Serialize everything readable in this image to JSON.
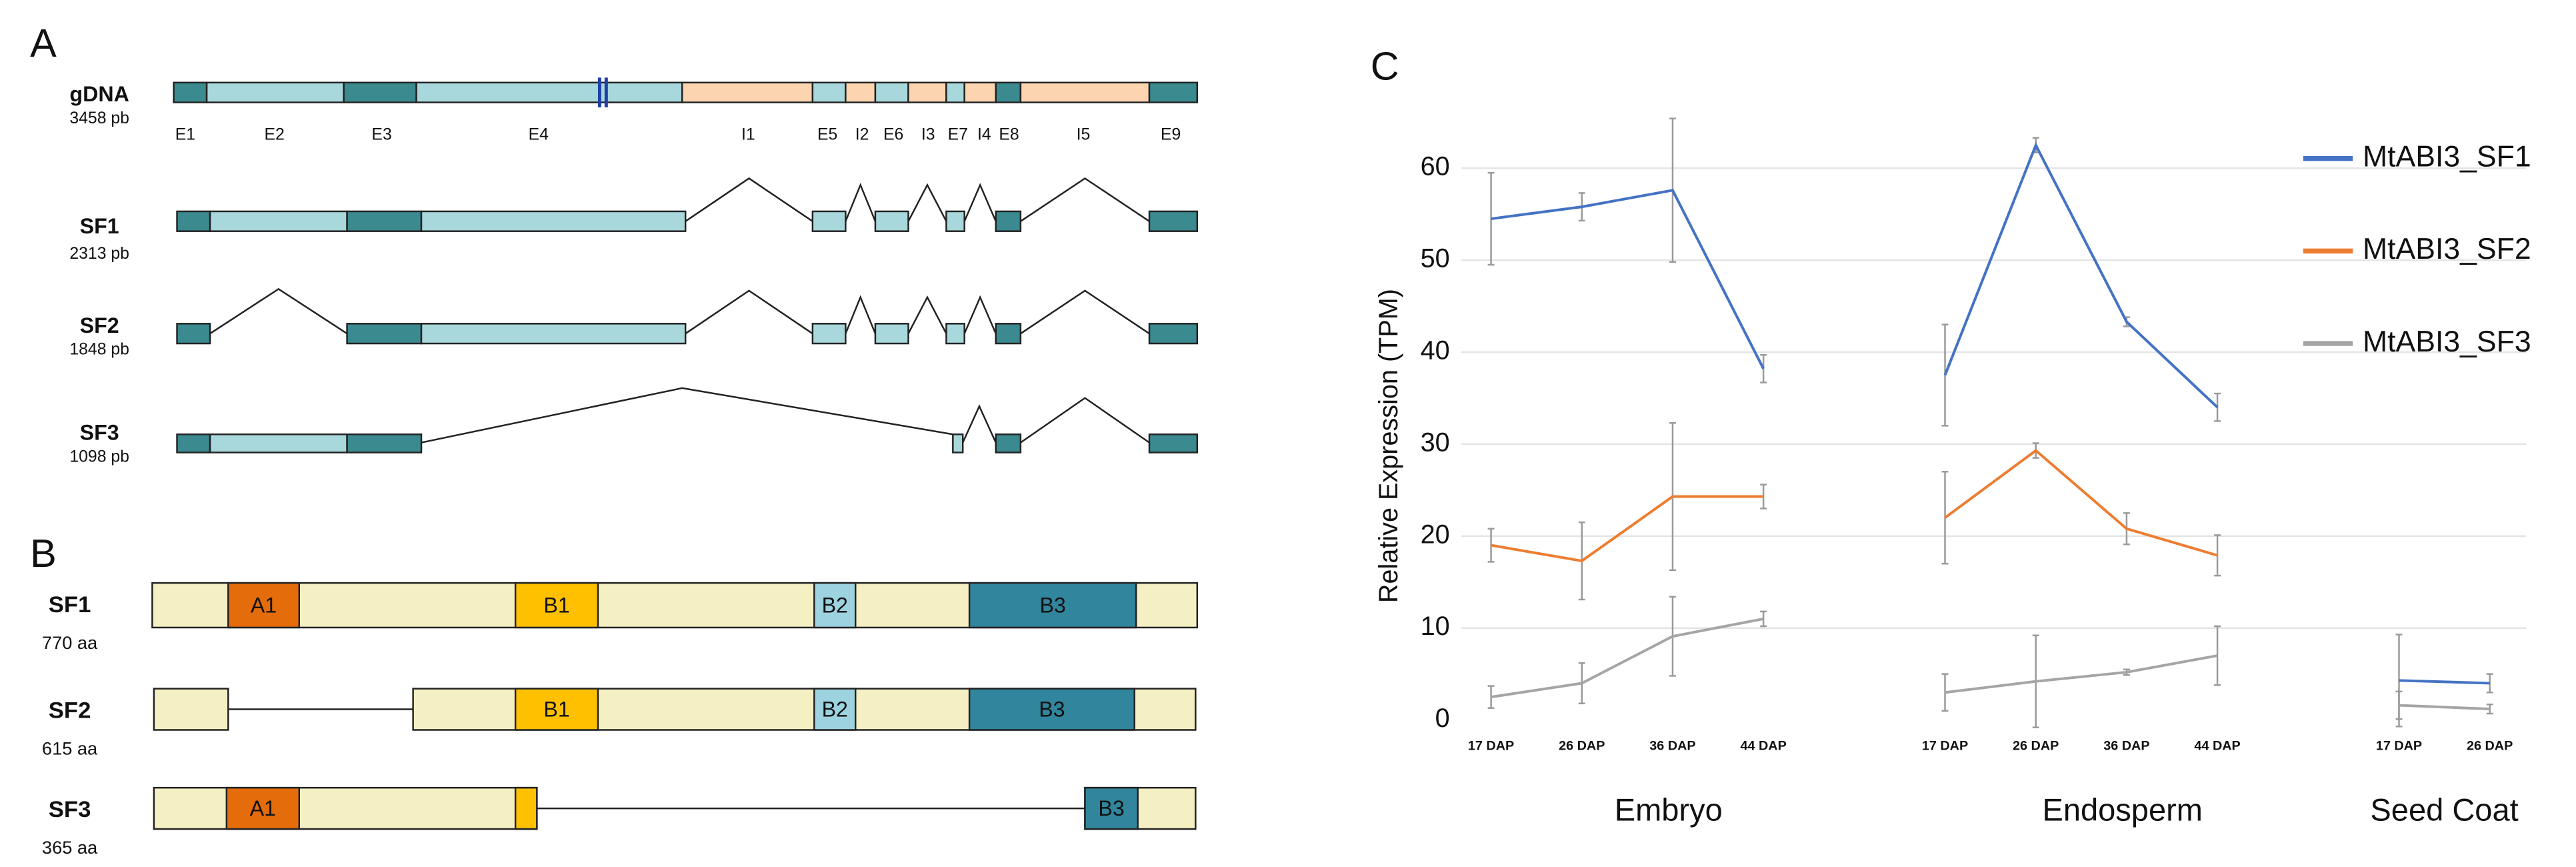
{
  "panel_a": {
    "label": "A",
    "tracks": [
      {
        "name": "gDNA",
        "size": "3458 pb"
      },
      {
        "name": "SF1",
        "size": "2313 pb"
      },
      {
        "name": "SF2",
        "size": "1848 pb"
      },
      {
        "name": "SF3",
        "size": "1098 pb"
      }
    ],
    "segments": [
      "E1",
      "E2",
      "E3",
      "E4",
      "I1",
      "E5",
      "I2",
      "E6",
      "I3",
      "E7",
      "I4",
      "E8",
      "I5",
      "E9"
    ]
  },
  "panel_b": {
    "label": "B",
    "tracks": [
      {
        "name": "SF1",
        "size": "770 aa",
        "domains": [
          "A1",
          "B1",
          "B2",
          "B3"
        ]
      },
      {
        "name": "SF2",
        "size": "615 aa",
        "domains": [
          "B1",
          "B2",
          "B3"
        ]
      },
      {
        "name": "SF3",
        "size": "365 aa",
        "domains": [
          "A1",
          "B3"
        ]
      }
    ]
  },
  "panel_c_label": "C",
  "chart_data": {
    "type": "line",
    "y_label": "Relative Expression (TPM)",
    "categories": [
      "17 DAP",
      "26 DAP",
      "36 DAP",
      "44 DAP",
      null,
      "17 DAP",
      "26 DAP",
      "36 DAP",
      "44 DAP",
      null,
      "17 DAP",
      "26 DAP"
    ],
    "groups": [
      "Embryo",
      "Endosperm",
      "Seed Coat"
    ],
    "ylim": [
      0,
      65
    ],
    "yticks": [
      0,
      10,
      20,
      30,
      40,
      50,
      60
    ],
    "grid": true,
    "legend": "right",
    "series": [
      {
        "name": "MtABI3_SF1",
        "color": "#4472c4",
        "values": [
          54.5,
          55.8,
          57.6,
          38.2,
          null,
          37.5,
          62.5,
          43.3,
          34,
          null,
          4.3,
          4.0
        ],
        "errors": [
          5,
          1.5,
          7.8,
          1.5,
          null,
          5.5,
          0.8,
          0.5,
          1.5,
          null,
          5,
          1
        ]
      },
      {
        "name": "MtABI3_SF2",
        "color": "#ed7d31",
        "values": [
          19,
          17.3,
          24.3,
          24.3,
          null,
          22,
          29.3,
          20.8,
          17.9,
          null,
          null,
          null
        ],
        "errors": [
          1.8,
          4.2,
          8,
          1.3,
          null,
          5,
          0.8,
          1.7,
          2.2,
          null,
          null,
          null
        ]
      },
      {
        "name": "MtABI3_SF3",
        "color": "#a5a5a5",
        "values": [
          2.5,
          4,
          9.1,
          11,
          null,
          3,
          4.2,
          5.2,
          7,
          null,
          1.6,
          1.2
        ],
        "errors": [
          1.2,
          2.2,
          4.3,
          0.8,
          null,
          2,
          5,
          0.3,
          3.2,
          null,
          1.5,
          0.5
        ]
      }
    ]
  }
}
